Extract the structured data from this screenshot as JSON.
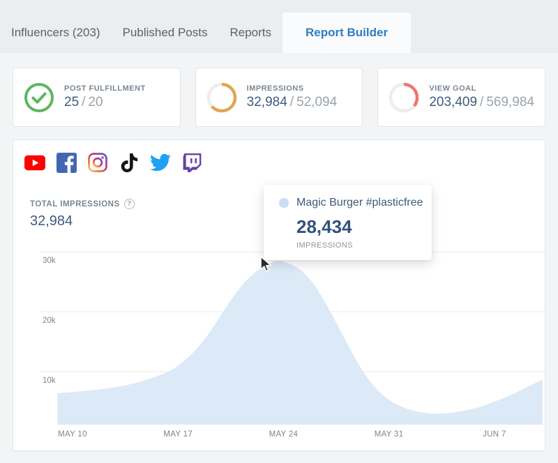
{
  "tabs": [
    {
      "label": "Influencers (203)",
      "active": false
    },
    {
      "label": "Published Posts",
      "active": false
    },
    {
      "label": "Reports",
      "active": false
    },
    {
      "label": "Report Builder",
      "active": true
    }
  ],
  "colors": {
    "active_tab_blue": "#2f7cc3",
    "green": "#5bb75c",
    "orange": "#e0a653",
    "red": "#ee7672",
    "donut_track": "#ededee",
    "area_fill": "#dce9f6",
    "navy_value": "#3f5a7d"
  },
  "stat_cards": [
    {
      "icon": "check-circle",
      "label": "POST FULFILLMENT",
      "value": "25",
      "separator": "/",
      "total": "20",
      "color": "#5bb75c"
    },
    {
      "icon": "donut",
      "label": "IMPRESSIONS",
      "value": "32,984",
      "separator": "/",
      "total": "52,094",
      "percent": 63.3,
      "color": "#e0a653"
    },
    {
      "icon": "donut",
      "label": "VIEW GOAL",
      "value": "203,409",
      "separator": "/",
      "total": "569,984",
      "percent": 35.7,
      "color": "#ee7672"
    }
  ],
  "chart_panel": {
    "platforms": [
      "youtube",
      "facebook",
      "instagram",
      "tiktok",
      "twitter",
      "twitch"
    ],
    "metric_label": "TOTAL IMPRESSIONS",
    "help_icon": "?",
    "metric_value": "32,984",
    "tooltip": {
      "series": "Magic Burger #plasticfree",
      "value": "28,434",
      "unit": "IMPRESSIONS"
    }
  },
  "chart_data": {
    "type": "area",
    "title": "TOTAL IMPRESSIONS",
    "total": 32984,
    "fill": "#dce9f6",
    "grid": true,
    "ylim": [
      0,
      30000
    ],
    "y_ticks": [
      {
        "value": 10000,
        "label": "10k"
      },
      {
        "value": 20000,
        "label": "20k"
      },
      {
        "value": 30000,
        "label": "30k"
      }
    ],
    "x_ticks": [
      {
        "day": 0,
        "label": "MAY 10"
      },
      {
        "day": 7,
        "label": "MAY 17"
      },
      {
        "day": 14,
        "label": "MAY 24"
      },
      {
        "day": 21,
        "label": "MAY 31"
      },
      {
        "day": 28,
        "label": "JUN 7"
      }
    ],
    "series": [
      {
        "name": "Magic Burger #plasticfree",
        "points_day_value": [
          [
            -1.0,
            6400
          ],
          [
            0,
            6600
          ],
          [
            2,
            7100
          ],
          [
            4,
            8000
          ],
          [
            6,
            9600
          ],
          [
            7,
            11000
          ],
          [
            8,
            13200
          ],
          [
            9,
            16200
          ],
          [
            10,
            20000
          ],
          [
            11,
            23600
          ],
          [
            12,
            26300
          ],
          [
            13,
            27900
          ],
          [
            13.8,
            28434
          ],
          [
            15,
            27200
          ],
          [
            16,
            24600
          ],
          [
            17,
            20500
          ],
          [
            18,
            15800
          ],
          [
            19,
            11200
          ],
          [
            20,
            7600
          ],
          [
            21,
            5300
          ],
          [
            22,
            4000
          ],
          [
            23,
            3300
          ],
          [
            24,
            3000
          ],
          [
            25,
            3100
          ],
          [
            26,
            3500
          ],
          [
            27,
            4100
          ],
          [
            28,
            5000
          ],
          [
            29,
            6000
          ],
          [
            30,
            7200
          ],
          [
            31.2,
            8700
          ]
        ]
      }
    ],
    "highlighted_point": {
      "x_label": "MAY 24",
      "value": 28434
    }
  }
}
